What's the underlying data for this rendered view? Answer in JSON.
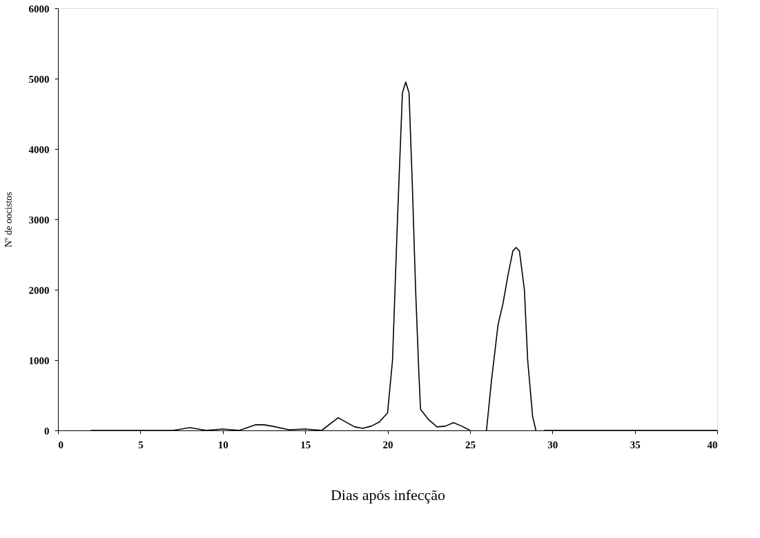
{
  "chart_data": {
    "type": "line",
    "xlabel": "Dias após infecção",
    "ylabel": "Nº de oocistos",
    "xlim": [
      0,
      40
    ],
    "xticks": [
      0,
      5,
      10,
      15,
      20,
      25,
      30,
      35,
      40
    ],
    "ylim": [
      0,
      6000
    ],
    "yticks": [
      0,
      1000,
      2000,
      3000,
      4000,
      5000,
      6000
    ],
    "grid": false,
    "marker": "none",
    "line_style": "solid",
    "series": [
      {
        "color": "#000000",
        "x": [
          2,
          7,
          8,
          9,
          10,
          11,
          12,
          12.5,
          13,
          14,
          15,
          16,
          17,
          18,
          18.5,
          19,
          19.5,
          20,
          20.3,
          20.6,
          20.9,
          21.1,
          21.3,
          21.5,
          21.7,
          21.9,
          22,
          22.5,
          23,
          23.5,
          24,
          24.5,
          25,
          25.5,
          26,
          26.3,
          26.7,
          27,
          27.3,
          27.6,
          27.8,
          28,
          28.3,
          28.5,
          28.8,
          29,
          29.2,
          29.5,
          40
        ],
        "values": [
          0,
          0,
          40,
          0,
          20,
          0,
          80,
          80,
          60,
          10,
          20,
          0,
          180,
          50,
          30,
          60,
          120,
          250,
          1000,
          3000,
          4800,
          4950,
          4800,
          3500,
          2000,
          800,
          300,
          150,
          50,
          60,
          110,
          60,
          0,
          null,
          0,
          700,
          1500,
          1800,
          2200,
          2550,
          2600,
          2550,
          2000,
          1000,
          200,
          0,
          null,
          0,
          0
        ]
      }
    ]
  }
}
